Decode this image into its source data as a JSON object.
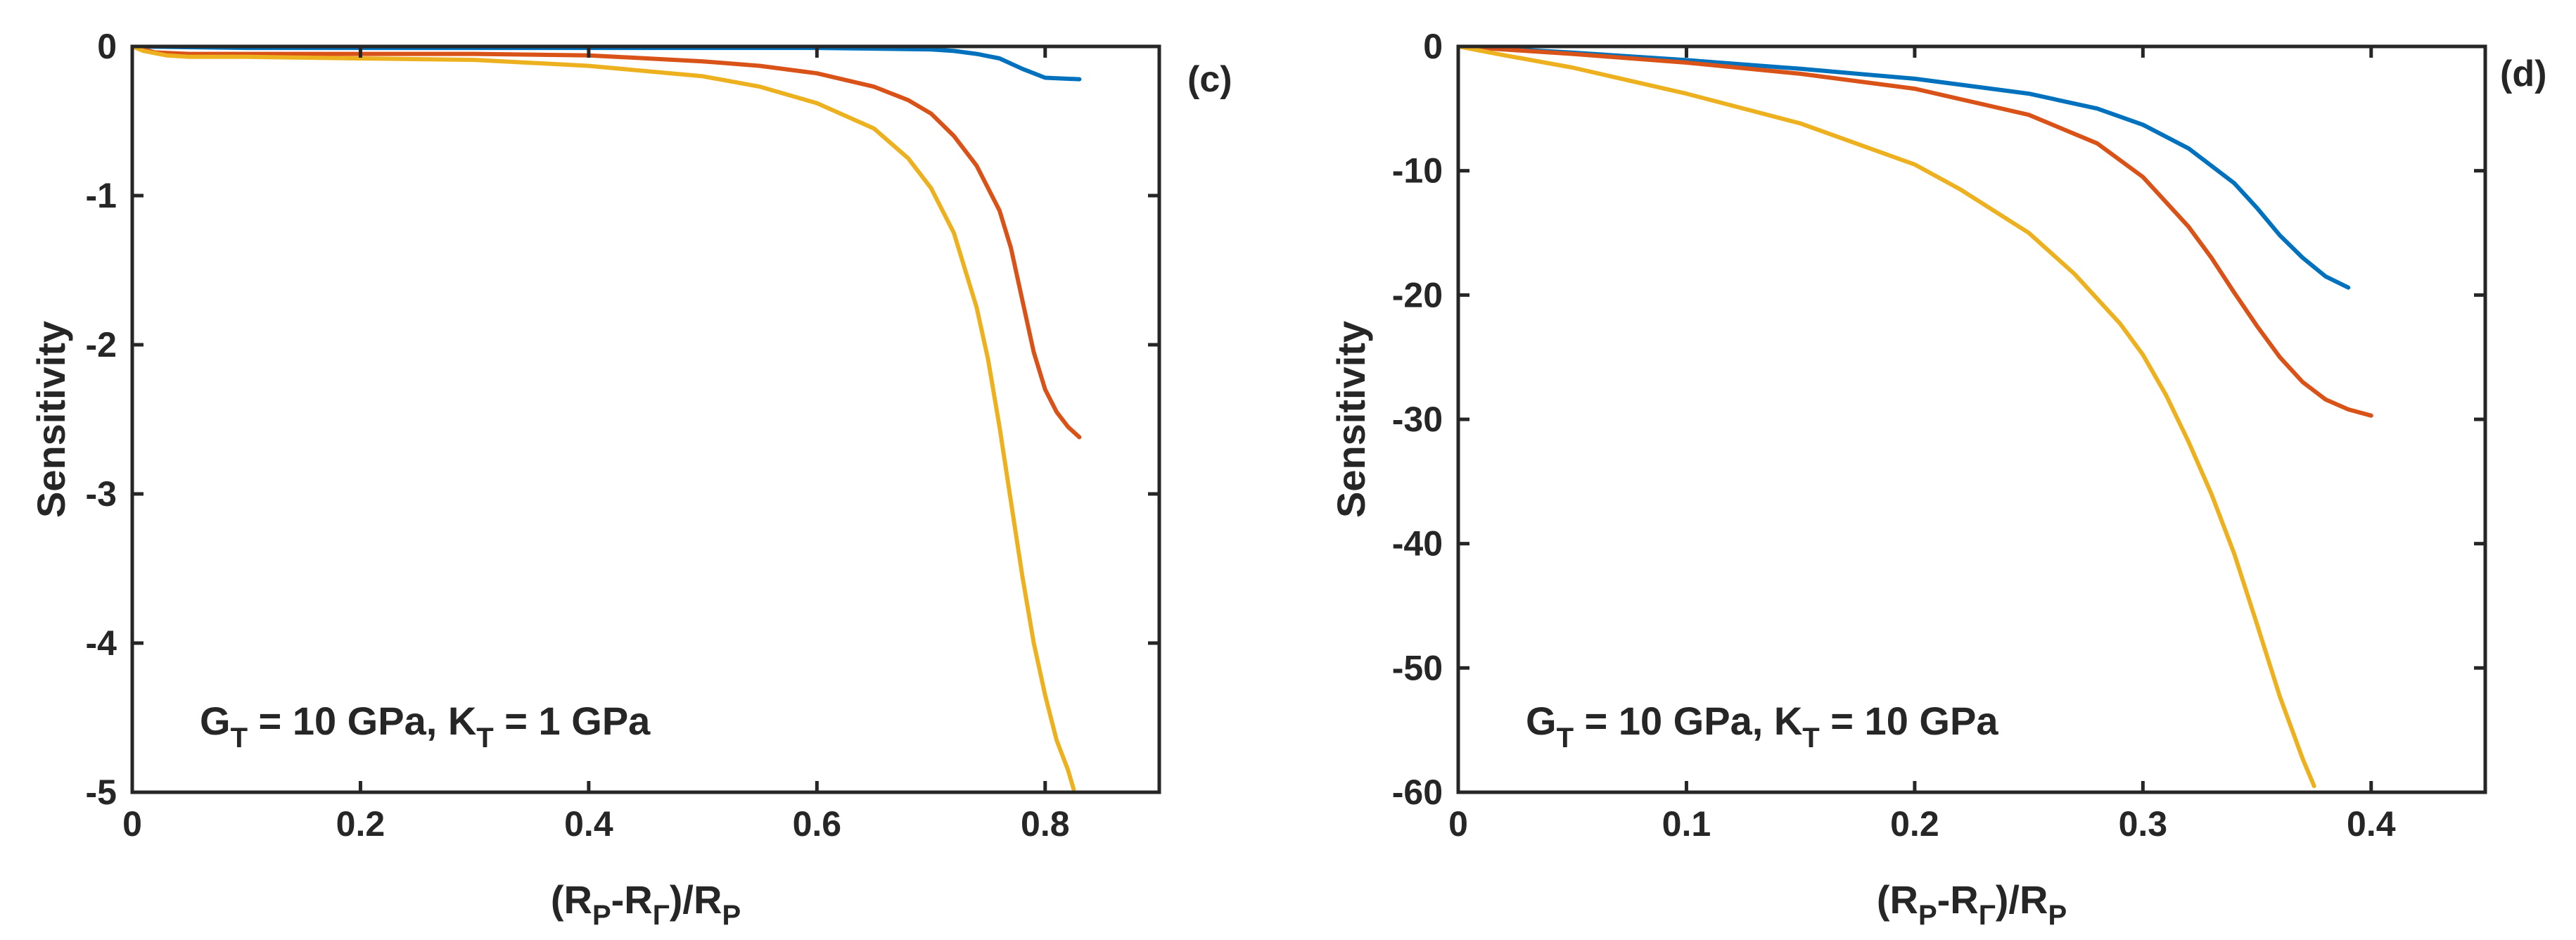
{
  "chart_data": [
    {
      "type": "line",
      "panel_label": "(c)",
      "annotation": {
        "g_letter": "G",
        "g_sub": "T",
        "g_value": " = 10 GPa, ",
        "k_letter": "K",
        "k_sub": "T",
        "k_value": " = 1 GPa"
      },
      "xlabel": {
        "a": "(R",
        "b": "P",
        "c": "-R",
        "d": "Γ",
        "e": ")/R",
        "f": "P"
      },
      "ylabel": "Sensitivity",
      "xlim": [
        0,
        0.9
      ],
      "ylim": [
        -5,
        0
      ],
      "xticks": [
        0,
        0.2,
        0.4,
        0.6,
        0.8
      ],
      "xtick_labels": [
        "0",
        "0.2",
        "0.4",
        "0.6",
        "0.8"
      ],
      "yticks": [
        0,
        -1,
        -2,
        -3,
        -4,
        -5
      ],
      "ytick_labels": [
        "0",
        "-1",
        "-2",
        "-3",
        "-4",
        "-5"
      ],
      "series": [
        {
          "name": "blue",
          "color": "#0072BD",
          "x": [
            0,
            0.1,
            0.2,
            0.3,
            0.4,
            0.5,
            0.6,
            0.7,
            0.72,
            0.74,
            0.76,
            0.78,
            0.8,
            0.83
          ],
          "y": [
            0,
            -0.01,
            -0.01,
            -0.01,
            -0.01,
            -0.01,
            -0.01,
            -0.02,
            -0.03,
            -0.05,
            -0.08,
            -0.15,
            -0.21,
            -0.22
          ]
        },
        {
          "name": "red",
          "color": "#D95319",
          "x": [
            0,
            0.02,
            0.05,
            0.1,
            0.2,
            0.3,
            0.4,
            0.5,
            0.55,
            0.6,
            0.65,
            0.68,
            0.7,
            0.72,
            0.74,
            0.76,
            0.77,
            0.78,
            0.79,
            0.8,
            0.81,
            0.82,
            0.83
          ],
          "y": [
            0,
            -0.04,
            -0.05,
            -0.05,
            -0.05,
            -0.05,
            -0.06,
            -0.1,
            -0.13,
            -0.18,
            -0.27,
            -0.36,
            -0.45,
            -0.6,
            -0.8,
            -1.1,
            -1.35,
            -1.7,
            -2.05,
            -2.3,
            -2.45,
            -2.55,
            -2.62
          ]
        },
        {
          "name": "yellow",
          "color": "#EDB120",
          "x": [
            0,
            0.01,
            0.03,
            0.05,
            0.1,
            0.2,
            0.3,
            0.4,
            0.5,
            0.55,
            0.6,
            0.65,
            0.68,
            0.7,
            0.72,
            0.74,
            0.75,
            0.76,
            0.77,
            0.78,
            0.79,
            0.8,
            0.81,
            0.82,
            0.825
          ],
          "y": [
            0,
            -0.03,
            -0.06,
            -0.07,
            -0.07,
            -0.08,
            -0.09,
            -0.13,
            -0.2,
            -0.27,
            -0.38,
            -0.55,
            -0.75,
            -0.95,
            -1.25,
            -1.75,
            -2.1,
            -2.55,
            -3.05,
            -3.55,
            -4.0,
            -4.35,
            -4.65,
            -4.85,
            -4.98
          ]
        }
      ]
    },
    {
      "type": "line",
      "panel_label": "(d)",
      "annotation": {
        "g_letter": "G",
        "g_sub": "T",
        "g_value": " = 10 GPa, ",
        "k_letter": "K",
        "k_sub": "T",
        "k_value": " = 10 GPa"
      },
      "xlabel": {
        "a": "(R",
        "b": "P",
        "c": "-R",
        "d": "Γ",
        "e": ")/R",
        "f": "P"
      },
      "ylabel": "Sensitivity",
      "xlim": [
        0,
        0.45
      ],
      "ylim": [
        -60,
        0
      ],
      "xticks": [
        0,
        0.1,
        0.2,
        0.3,
        0.4
      ],
      "xtick_labels": [
        "0",
        "0.1",
        "0.2",
        "0.3",
        "0.4"
      ],
      "yticks": [
        0,
        -10,
        -20,
        -30,
        -40,
        -50,
        -60
      ],
      "ytick_labels": [
        "0",
        "-10",
        "-20",
        "-30",
        "-40",
        "-50",
        "-60"
      ],
      "series": [
        {
          "name": "blue",
          "color": "#0072BD",
          "x": [
            0,
            0.05,
            0.1,
            0.15,
            0.2,
            0.25,
            0.28,
            0.3,
            0.32,
            0.34,
            0.35,
            0.36,
            0.37,
            0.38,
            0.39
          ],
          "y": [
            0,
            -0.5,
            -1.1,
            -1.8,
            -2.6,
            -3.8,
            -5.0,
            -6.3,
            -8.2,
            -11.0,
            -13.0,
            -15.2,
            -17.0,
            -18.5,
            -19.4
          ]
        },
        {
          "name": "red",
          "color": "#D95319",
          "x": [
            0,
            0.05,
            0.1,
            0.15,
            0.2,
            0.25,
            0.28,
            0.3,
            0.32,
            0.33,
            0.34,
            0.35,
            0.36,
            0.37,
            0.38,
            0.39,
            0.4
          ],
          "y": [
            0,
            -0.6,
            -1.3,
            -2.2,
            -3.4,
            -5.5,
            -7.8,
            -10.5,
            -14.5,
            -17.0,
            -19.8,
            -22.5,
            -25.0,
            -27.0,
            -28.4,
            -29.2,
            -29.7
          ]
        },
        {
          "name": "yellow",
          "color": "#EDB120",
          "x": [
            0,
            0.02,
            0.05,
            0.1,
            0.15,
            0.2,
            0.22,
            0.25,
            0.27,
            0.29,
            0.3,
            0.31,
            0.32,
            0.33,
            0.34,
            0.35,
            0.36,
            0.37,
            0.375
          ],
          "y": [
            0,
            -0.7,
            -1.7,
            -3.8,
            -6.2,
            -9.5,
            -11.5,
            -15.0,
            -18.3,
            -22.3,
            -24.8,
            -28.0,
            -31.8,
            -36.0,
            -40.8,
            -46.5,
            -52.3,
            -57.3,
            -59.5
          ]
        }
      ]
    }
  ]
}
